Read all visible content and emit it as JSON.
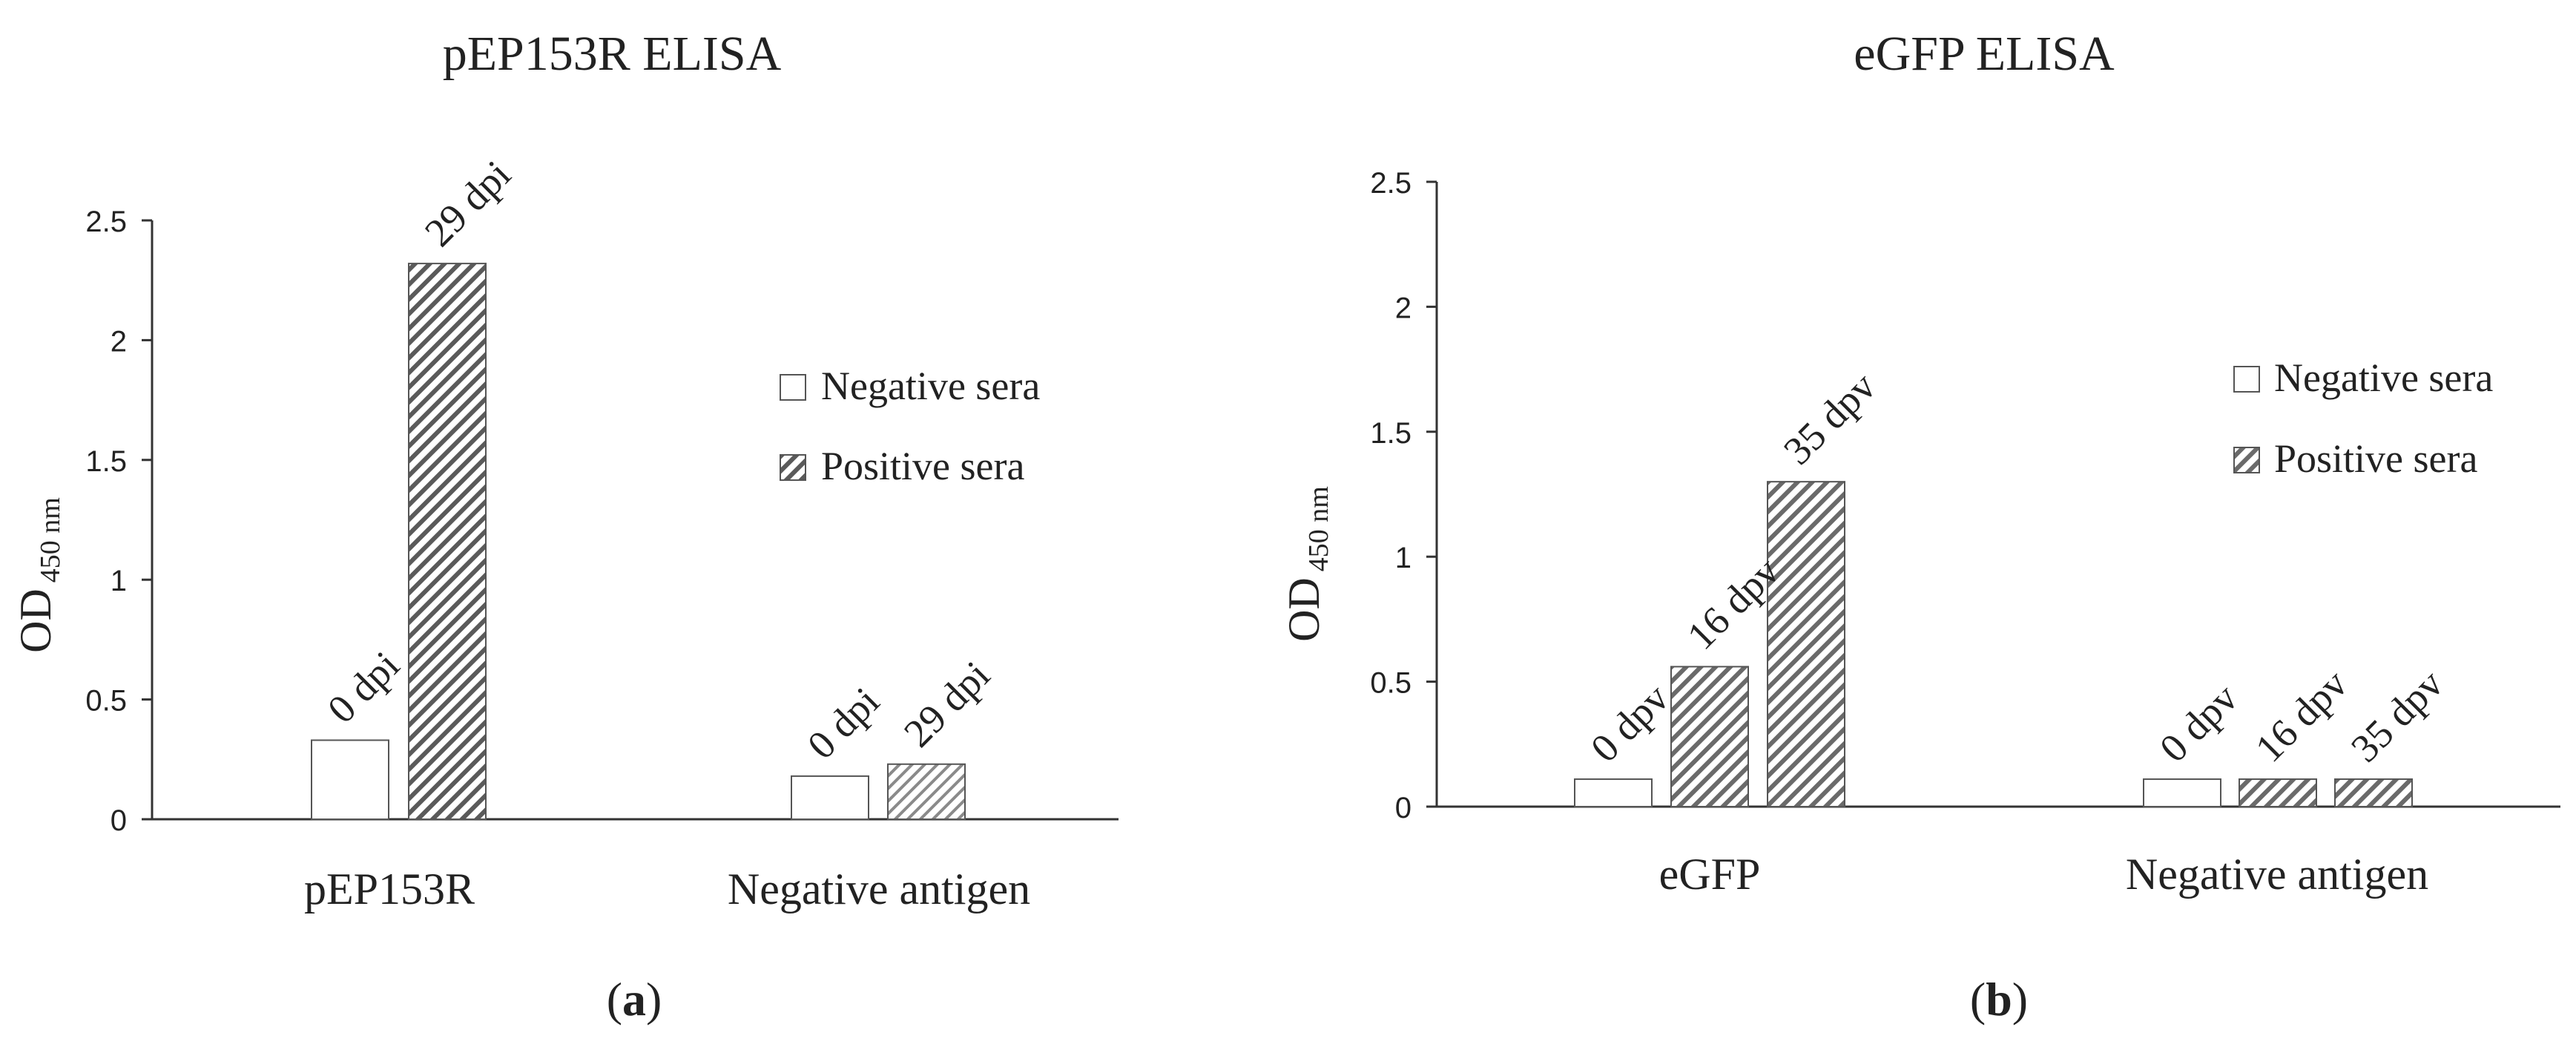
{
  "chart_data": [
    {
      "type": "bar",
      "panel_label": "a",
      "title": "pEP153R ELISA",
      "ylabel": "OD",
      "ylabel_subscript": "450 nm",
      "xlabel": "",
      "ylim": [
        0,
        2.5
      ],
      "y_ticks": [
        "0",
        "0.5",
        "1",
        "1.5",
        "2",
        "2.5"
      ],
      "categories": [
        "pEP153R",
        "Negative antigen"
      ],
      "legend": {
        "position": "top-right",
        "entries": [
          "Negative sera",
          "Positive sera"
        ]
      },
      "series": [
        {
          "name": "Negative sera",
          "pattern": "open",
          "bars": [
            {
              "category": "pEP153R",
              "label": "0 dpi",
              "value": 0.33
            },
            {
              "category": "Negative antigen",
              "label": "0 dpi",
              "value": 0.18
            }
          ]
        },
        {
          "name": "Positive sera",
          "pattern": "hatched",
          "bars": [
            {
              "category": "pEP153R",
              "label": "29 dpi",
              "value": 2.32
            },
            {
              "category": "Negative antigen",
              "label": "29 dpi",
              "value": 0.23
            }
          ]
        }
      ]
    },
    {
      "type": "bar",
      "panel_label": "b",
      "title": "eGFP ELISA",
      "ylabel": "OD",
      "ylabel_subscript": "450 nm",
      "xlabel": "",
      "ylim": [
        0,
        2.5
      ],
      "y_ticks": [
        "0",
        "0.5",
        "1",
        "1.5",
        "2",
        "2.5"
      ],
      "categories": [
        "eGFP",
        "Negative antigen"
      ],
      "legend": {
        "position": "top-right",
        "entries": [
          "Negative sera",
          "Positive sera"
        ]
      },
      "series": [
        {
          "name": "Negative sera",
          "pattern": "open",
          "bars": [
            {
              "category": "eGFP",
              "label": "0 dpv",
              "value": 0.11
            },
            {
              "category": "Negative antigen",
              "label": "0 dpv",
              "value": 0.11
            }
          ]
        },
        {
          "name": "Positive sera",
          "pattern": "hatched",
          "bars": [
            {
              "category": "eGFP",
              "label": "16 dpv",
              "value": 0.56
            },
            {
              "category": "eGFP",
              "label": "35 dpv",
              "value": 1.3
            },
            {
              "category": "Negative antigen",
              "label": "16 dpv",
              "value": 0.11
            },
            {
              "category": "Negative antigen",
              "label": "35 dpv",
              "value": 0.11
            }
          ]
        }
      ]
    }
  ]
}
